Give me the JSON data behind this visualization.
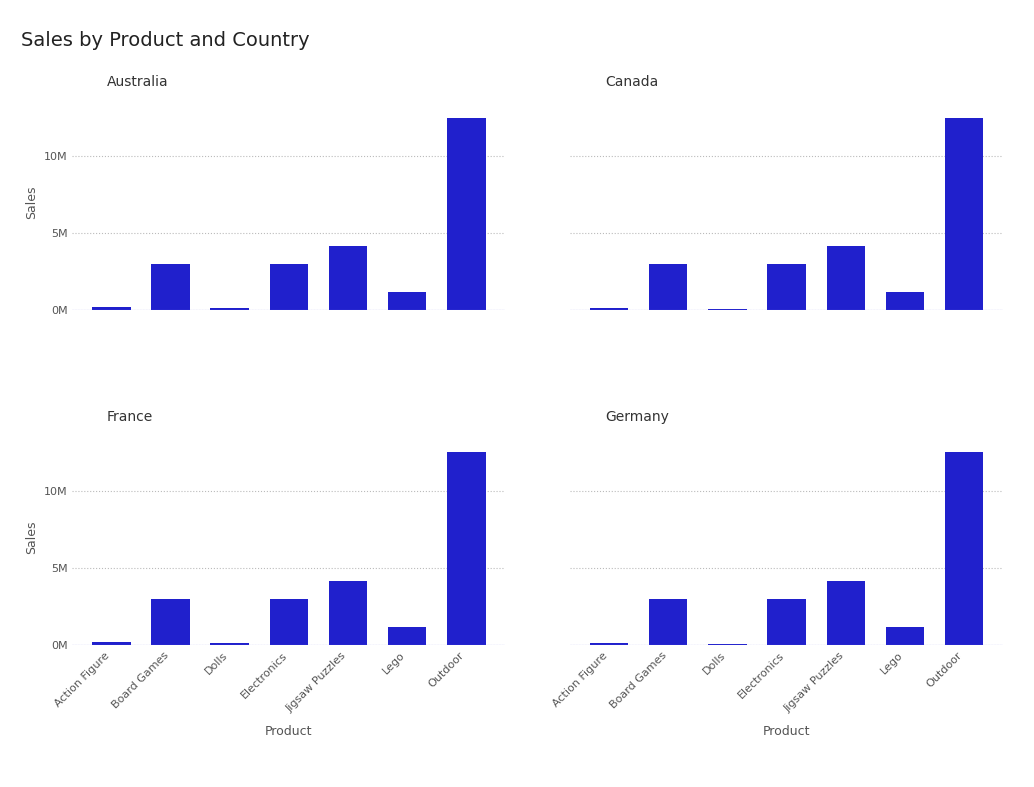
{
  "title": "Sales by Product and Country",
  "countries": [
    "Australia",
    "Canada",
    "France",
    "Germany"
  ],
  "products": [
    "Action Figure",
    "Board Games",
    "Dolls",
    "Electronics",
    "Jigsaw Puzzles",
    "Lego",
    "Outdoor"
  ],
  "sales": {
    "Australia": [
      200000,
      3000000,
      150000,
      3000000,
      4200000,
      1200000,
      12500000
    ],
    "Canada": [
      150000,
      3000000,
      100000,
      3000000,
      4200000,
      1200000,
      12500000
    ],
    "France": [
      200000,
      3000000,
      150000,
      3000000,
      4200000,
      1200000,
      12500000
    ],
    "Germany": [
      150000,
      3000000,
      100000,
      3000000,
      4200000,
      1200000,
      12500000
    ]
  },
  "bar_color": "#2020CC",
  "background_color": "#FFFFFF",
  "grid_color": "#BBBBBB",
  "ylabel": "Sales",
  "xlabel": "Product",
  "title_fontsize": 14,
  "axis_label_fontsize": 9,
  "tick_label_fontsize": 8,
  "country_label_fontsize": 10,
  "ylim": [
    0,
    14000000
  ],
  "yticks": [
    0,
    5000000,
    10000000
  ],
  "ytick_labels": [
    "0M",
    "5M",
    "10M"
  ]
}
